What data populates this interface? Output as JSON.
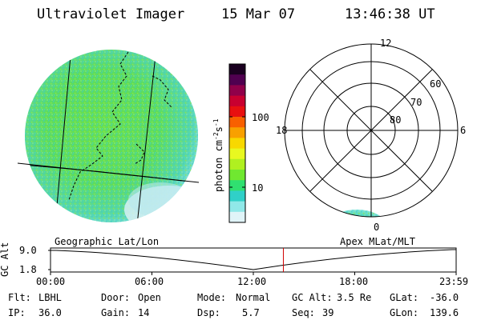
{
  "header": {
    "title": "Ultraviolet Imager",
    "date": "15 Mar 07",
    "time": "13:46:38 UT"
  },
  "colorbar": {
    "unit_label": "photon cm",
    "unit_exp1": "-2",
    "unit_s": "s",
    "unit_exp2": "-1",
    "tick_100": "100",
    "tick_10": "10",
    "colors": [
      "#1a0020",
      "#500050",
      "#90004a",
      "#c80030",
      "#e81010",
      "#f86000",
      "#f8a000",
      "#f8d800",
      "#e8f820",
      "#b0f020",
      "#70e830",
      "#30e070",
      "#30d0c8",
      "#90e8e8",
      "#e0f4f8"
    ]
  },
  "polar_plot": {
    "mlt_labels": {
      "top": "12",
      "left": "18",
      "right": "6",
      "bottom": "0"
    },
    "lat_labels": [
      "60",
      "70",
      "80"
    ]
  },
  "timeline": {
    "left_label": "Geographic Lat/Lon",
    "right_label": "Apex MLat/MLT",
    "y_axis_label": "GC Alt",
    "y_max": "9.0",
    "y_min": "1.8",
    "x_ticks": [
      "00:00",
      "06:00",
      "12:00",
      "18:00",
      "23:59"
    ],
    "current_time_hours": 13.777,
    "marker_color": "#d00000"
  },
  "info": {
    "flt_label": "Flt:",
    "flt_value": "LBHL",
    "ip_label": "IP:",
    "ip_value": "36.0",
    "door_label": "Door:",
    "door_value": "Open",
    "gain_label": "Gain:",
    "gain_value": "14",
    "mode_label": "Mode:",
    "mode_value": "Normal",
    "dsp_label": "Dsp:",
    "dsp_value": "5.7",
    "gcalt_label": "GC Alt:",
    "gcalt_value": "3.5 Re",
    "seq_label": "Seq:",
    "seq_value": "39",
    "glat_label": "GLat:",
    "glat_value": "-36.0",
    "glon_label": "GLon:",
    "glon_value": "139.6"
  }
}
